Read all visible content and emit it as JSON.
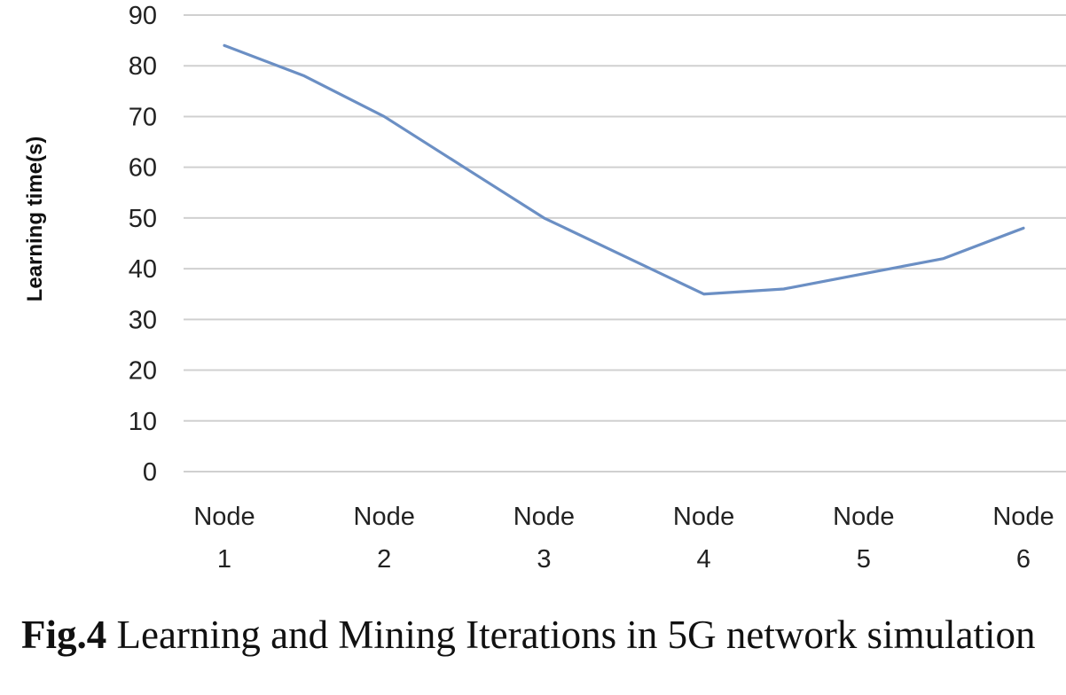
{
  "chart_data": {
    "type": "line",
    "categories": [
      [
        "Node",
        "1"
      ],
      [
        "Node",
        "2"
      ],
      [
        "Node",
        "3"
      ],
      [
        "Node",
        "4"
      ],
      [
        "Node",
        "5"
      ],
      [
        "Node",
        "6"
      ]
    ],
    "x": [
      1,
      1.5,
      2,
      2.5,
      3,
      3.5,
      4,
      4.5,
      5,
      5.5,
      6
    ],
    "series": [
      {
        "color": "#6b8fc4",
        "values": [
          84,
          78,
          70,
          60,
          50,
          42.5,
          35,
          36,
          39,
          42,
          48
        ]
      }
    ],
    "ylabel": "Learning time(s)",
    "ylim": [
      0,
      90
    ],
    "yticks": [
      "0",
      "10",
      "20",
      "30",
      "40",
      "50",
      "60",
      "70",
      "80",
      "90"
    ],
    "grid": true,
    "legend": "none"
  },
  "caption": {
    "label": "Fig.4",
    "text": " Learning and Mining Iterations in 5G network simulation"
  }
}
